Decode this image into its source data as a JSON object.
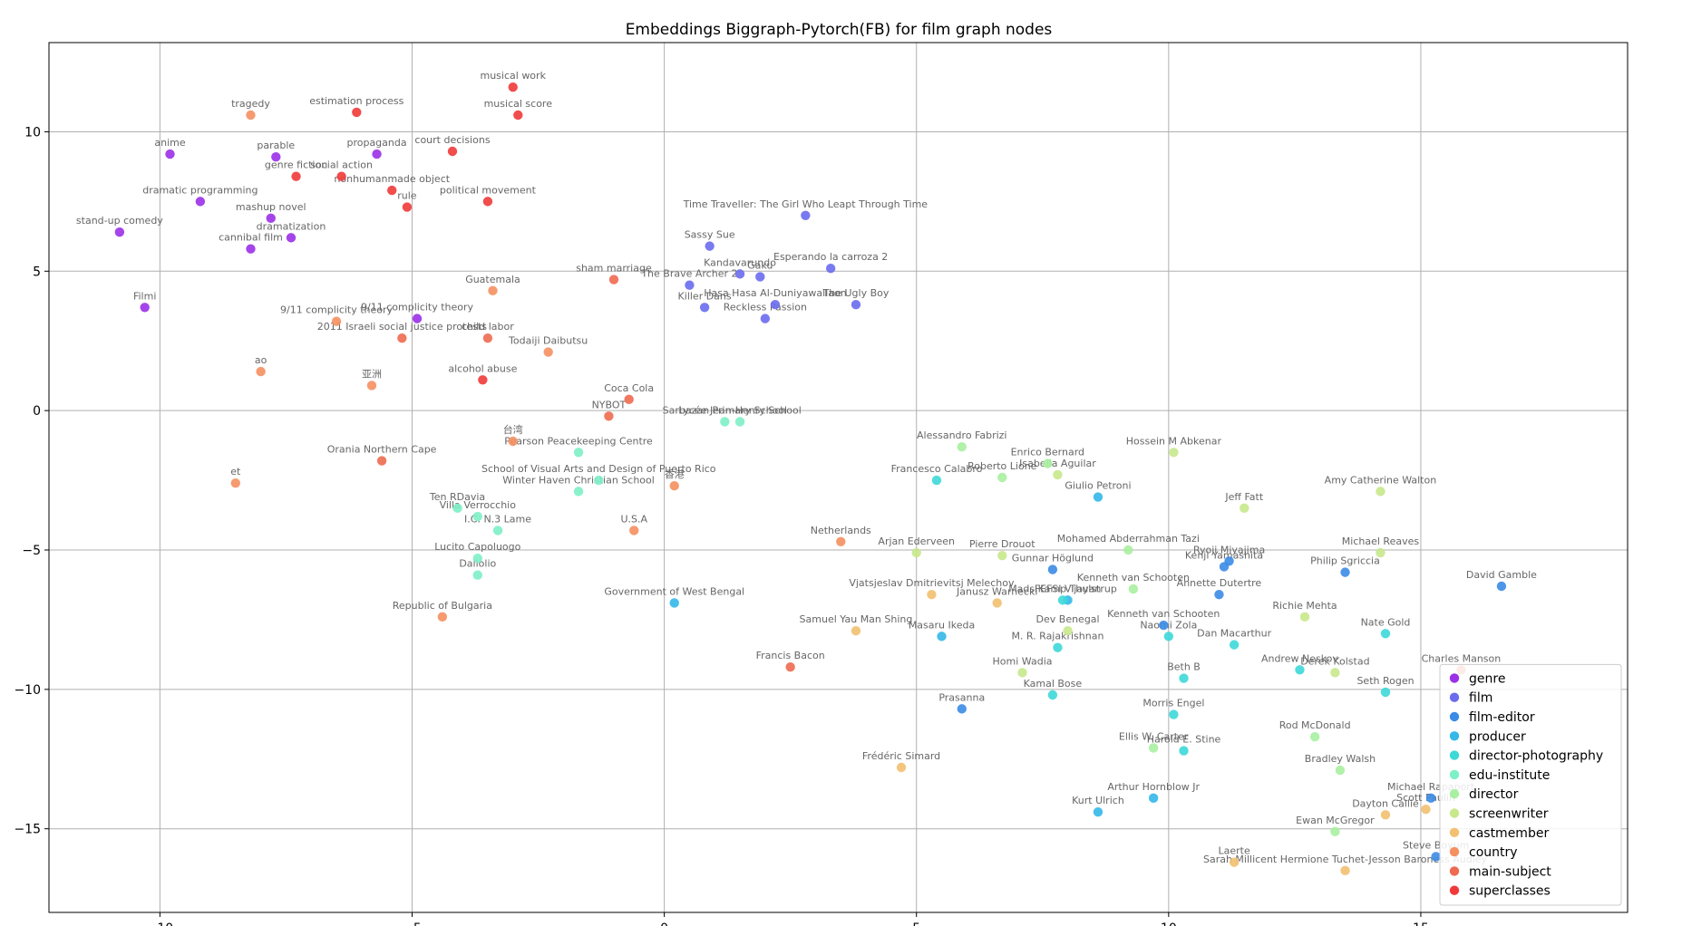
{
  "chart_data": {
    "type": "scatter",
    "title": "Embeddings Biggraph-Pytorch(FB) for film graph nodes",
    "xlabel": "",
    "ylabel": "",
    "xlim": [
      -12.2,
      19.1
    ],
    "ylim": [
      -18.0,
      13.2
    ],
    "grid": true,
    "legend_position": "lower-right",
    "x_ticks": [
      -10,
      -5,
      0,
      5,
      10,
      15
    ],
    "y_ticks": [
      10,
      5,
      0,
      -5,
      -10,
      -15
    ],
    "x_tick_labels": [
      "−10",
      "−5",
      "0",
      "5",
      "10",
      "15"
    ],
    "y_tick_labels": [
      "10",
      "5",
      "0",
      "−5",
      "−10",
      "−15"
    ],
    "series": [
      {
        "name": "genre",
        "color": "#9b30e8",
        "points": [
          {
            "label": "anime",
            "x": -9.8,
            "y": 9.2
          },
          {
            "label": "parable",
            "x": -7.7,
            "y": 9.1
          },
          {
            "label": "propaganda",
            "x": -5.7,
            "y": 9.2
          },
          {
            "label": "dramatic programming",
            "x": -9.2,
            "y": 7.5
          },
          {
            "label": "mashup novel",
            "x": -7.8,
            "y": 6.9
          },
          {
            "label": "dramatization",
            "x": -7.4,
            "y": 6.2
          },
          {
            "label": "cannibal film",
            "x": -8.2,
            "y": 5.8
          },
          {
            "label": "stand-up comedy",
            "x": -10.8,
            "y": 6.4
          },
          {
            "label": "Filmi",
            "x": -10.3,
            "y": 3.7
          },
          {
            "label": "9/11 complicity theory",
            "x": -4.9,
            "y": 3.3
          }
        ]
      },
      {
        "name": "film",
        "color": "#6b6bee",
        "points": [
          {
            "label": "Time Traveller: The Girl Who Leapt Through Time",
            "x": 2.8,
            "y": 7.0
          },
          {
            "label": "Sassy Sue",
            "x": 0.9,
            "y": 5.9
          },
          {
            "label": "Esperando la carroza 2",
            "x": 3.3,
            "y": 5.1
          },
          {
            "label": "Kandavarundo",
            "x": 1.5,
            "y": 4.9
          },
          {
            "label": "Gaku",
            "x": 1.9,
            "y": 4.8
          },
          {
            "label": "The Brave Archer 2",
            "x": 0.5,
            "y": 4.5
          },
          {
            "label": "Hasa Hasa Al-Duniyawallaon",
            "x": 2.2,
            "y": 3.8
          },
          {
            "label": "The Ugly Boy",
            "x": 3.8,
            "y": 3.8
          },
          {
            "label": "Killer Dans",
            "x": 0.8,
            "y": 3.7
          },
          {
            "label": "Reckless Passion",
            "x": 2.0,
            "y": 3.3
          }
        ]
      },
      {
        "name": "film-editor",
        "color": "#3b8be6",
        "points": [
          {
            "label": "Gunnar Höglund",
            "x": 7.7,
            "y": -5.7
          },
          {
            "label": "Ryoji Miyajima",
            "x": 11.2,
            "y": -5.4
          },
          {
            "label": "Kenji Yamashita",
            "x": 11.1,
            "y": -5.6
          },
          {
            "label": "Philip Sgriccia",
            "x": 13.5,
            "y": -5.8
          },
          {
            "label": "David Gamble",
            "x": 16.6,
            "y": -6.3
          },
          {
            "label": "Annette Dutertre",
            "x": 11.0,
            "y": -6.6
          },
          {
            "label": "Kenneth van Schooten",
            "x": 9.9,
            "y": -7.7
          },
          {
            "label": "Prasanna",
            "x": 5.9,
            "y": -10.7
          },
          {
            "label": "Michael Rapaport",
            "x": 15.2,
            "y": -13.9
          },
          {
            "label": "Steve Boyum",
            "x": 15.3,
            "y": -16.0
          }
        ]
      },
      {
        "name": "producer",
        "color": "#33b8e8",
        "points": [
          {
            "label": "Giulio Petroni",
            "x": 8.6,
            "y": -3.1
          },
          {
            "label": "FEFSI Vijayan",
            "x": 8.0,
            "y": -6.8
          },
          {
            "label": "Government of West Bengal",
            "x": 0.2,
            "y": -6.9
          },
          {
            "label": "Masaru Ikeda",
            "x": 5.5,
            "y": -8.1
          },
          {
            "label": "Arthur Hornblow Jr",
            "x": 9.7,
            "y": -13.9
          },
          {
            "label": "Kurt Ulrich",
            "x": 8.6,
            "y": -14.4
          }
        ]
      },
      {
        "name": "director-photography",
        "color": "#3dd8d8",
        "points": [
          {
            "label": "Francesco Calabro",
            "x": 5.4,
            "y": -2.5
          },
          {
            "label": "Mads Kamp Thulstrup",
            "x": 7.9,
            "y": -6.8
          },
          {
            "label": "M. R. Rajakrishnan",
            "x": 7.8,
            "y": -8.5
          },
          {
            "label": "Naomi Zola",
            "x": 10.0,
            "y": -8.1
          },
          {
            "label": "Dan Macarthur",
            "x": 11.3,
            "y": -8.4
          },
          {
            "label": "Andrew Neskov",
            "x": 12.6,
            "y": -9.3
          },
          {
            "label": "Nate Gold",
            "x": 14.3,
            "y": -8.0
          },
          {
            "label": "Beth B",
            "x": 10.3,
            "y": -9.6
          },
          {
            "label": "Kamal Bose",
            "x": 7.7,
            "y": -10.2
          },
          {
            "label": "Seth Rogen",
            "x": 14.3,
            "y": -10.1
          },
          {
            "label": "Morris Engel",
            "x": 10.1,
            "y": -10.9
          },
          {
            "label": "Harold E. Stine",
            "x": 10.3,
            "y": -12.2
          }
        ]
      },
      {
        "name": "edu-institute",
        "color": "#7df0c6",
        "points": [
          {
            "label": "Sarbazan Primary School",
            "x": 1.2,
            "y": -0.4
          },
          {
            "label": "Lycée Jean-Henry School",
            "x": 1.5,
            "y": -0.4
          },
          {
            "label": "Pearson Peacekeeping Centre",
            "x": -1.7,
            "y": -1.5
          },
          {
            "label": "School of Visual Arts and Design of Puerto Rico",
            "x": -1.3,
            "y": -2.5
          },
          {
            "label": "Winter Haven Christian School",
            "x": -1.7,
            "y": -2.9
          },
          {
            "label": "Ten RDavia",
            "x": -4.1,
            "y": -3.5
          },
          {
            "label": "Villa Verrocchio",
            "x": -3.7,
            "y": -3.8
          },
          {
            "label": "I.C. N.3 Lame",
            "x": -3.3,
            "y": -4.3
          },
          {
            "label": "Lucito Capoluogo",
            "x": -3.7,
            "y": -5.3
          },
          {
            "label": "Dallolio",
            "x": -3.7,
            "y": -5.9
          }
        ]
      },
      {
        "name": "director",
        "color": "#a8f0a0",
        "points": [
          {
            "label": "Alessandro Fabrizi",
            "x": 5.9,
            "y": -1.3
          },
          {
            "label": "Enrico Bernard",
            "x": 7.6,
            "y": -1.9
          },
          {
            "label": "Roberto Lione",
            "x": 6.7,
            "y": -2.4
          },
          {
            "label": "Mohamed Abderrahman Tazi",
            "x": 9.2,
            "y": -5.0
          },
          {
            "label": "Kenneth van Schooten",
            "x": 9.3,
            "y": -6.4
          },
          {
            "label": "Ellis W. Carter",
            "x": 9.7,
            "y": -12.1
          },
          {
            "label": "Rod McDonald",
            "x": 12.9,
            "y": -11.7
          },
          {
            "label": "Ewan McGregor",
            "x": 13.3,
            "y": -15.1
          },
          {
            "label": "Bradley Walsh",
            "x": 13.4,
            "y": -12.9
          }
        ]
      },
      {
        "name": "screenwriter",
        "color": "#c8e88c",
        "points": [
          {
            "label": "Hossein M Abkenar",
            "x": 10.1,
            "y": -1.5
          },
          {
            "label": "Isabella Aguilar",
            "x": 7.8,
            "y": -2.3
          },
          {
            "label": "Jeff Fatt",
            "x": 11.5,
            "y": -3.5
          },
          {
            "label": "Amy Catherine Walton",
            "x": 14.2,
            "y": -2.9
          },
          {
            "label": "Arjan Ederveen",
            "x": 5.0,
            "y": -5.1
          },
          {
            "label": "Pierre Drouot",
            "x": 6.7,
            "y": -5.2
          },
          {
            "label": "Michael Reaves",
            "x": 14.2,
            "y": -5.1
          },
          {
            "label": "Dev Benegal",
            "x": 8.0,
            "y": -7.9
          },
          {
            "label": "Richie Mehta",
            "x": 12.7,
            "y": -7.4
          },
          {
            "label": "Homi Wadia",
            "x": 7.1,
            "y": -9.4
          },
          {
            "label": "Derek Kolstad",
            "x": 13.3,
            "y": -9.4
          }
        ]
      },
      {
        "name": "castmember",
        "color": "#f2c070",
        "points": [
          {
            "label": "Janusz Warnecki",
            "x": 6.6,
            "y": -6.9
          },
          {
            "label": "Vjatsjeslav Dmitrievitsj Melechov",
            "x": 5.3,
            "y": -6.6
          },
          {
            "label": "Samuel Yau Man Shing",
            "x": 3.8,
            "y": -7.9
          },
          {
            "label": "Frédéric Simard",
            "x": 4.7,
            "y": -12.8
          },
          {
            "label": "Dayton Callie",
            "x": 14.3,
            "y": -14.5
          },
          {
            "label": "Scott Paulin",
            "x": 15.1,
            "y": -14.3
          },
          {
            "label": "Laerte",
            "x": 11.3,
            "y": -16.2
          },
          {
            "label": "Sarah Millicent Hermione Tuchet-Jesson Baroness Audley",
            "x": 13.5,
            "y": -16.5
          }
        ]
      },
      {
        "name": "country",
        "color": "#f59060",
        "points": [
          {
            "label": "Guatemala",
            "x": -3.4,
            "y": 4.3
          },
          {
            "label": "ao",
            "x": -8.0,
            "y": 1.4
          },
          {
            "label": "亚洲",
            "x": -5.8,
            "y": 0.9
          },
          {
            "label": "Todaiji Daibutsu",
            "x": -2.3,
            "y": 2.1
          },
          {
            "label": "台湾",
            "x": -3.0,
            "y": -1.1
          },
          {
            "label": "香港",
            "x": 0.2,
            "y": -2.7
          },
          {
            "label": "et",
            "x": -8.5,
            "y": -2.6
          },
          {
            "label": "U.S.A",
            "x": -0.6,
            "y": -4.3
          },
          {
            "label": "Netherlands",
            "x": 3.5,
            "y": -4.7
          },
          {
            "label": "Republic of Bulgaria",
            "x": -4.4,
            "y": -7.4
          },
          {
            "label": "tragedy",
            "x": -8.2,
            "y": 10.6
          },
          {
            "label": "9/11 complicity theory",
            "x": -6.5,
            "y": 3.2
          }
        ]
      },
      {
        "name": "main-subject",
        "color": "#ee6a50",
        "points": [
          {
            "label": "2011 Israeli social justice protests",
            "x": -5.2,
            "y": 2.6
          },
          {
            "label": "child labor",
            "x": -3.5,
            "y": 2.6
          },
          {
            "label": "Orania Northern Cape",
            "x": -5.6,
            "y": -1.8
          },
          {
            "label": "Coca Cola",
            "x": -0.7,
            "y": 0.4
          },
          {
            "label": "sham marriage",
            "x": -1.0,
            "y": 4.7
          },
          {
            "label": "Francis Bacon",
            "x": 2.5,
            "y": -9.2
          },
          {
            "label": "Charles Manson",
            "x": 15.8,
            "y": -9.3
          },
          {
            "label": "NYBOT",
            "x": -1.1,
            "y": -0.2
          }
        ]
      },
      {
        "name": "superclasses",
        "color": "#f03a3a",
        "points": [
          {
            "label": "musical work",
            "x": -3.0,
            "y": 11.6
          },
          {
            "label": "musical score",
            "x": -2.9,
            "y": 10.6
          },
          {
            "label": "estimation process",
            "x": -6.1,
            "y": 10.7
          },
          {
            "label": "court decisions",
            "x": -4.2,
            "y": 9.3
          },
          {
            "label": "genre fiction",
            "x": -7.3,
            "y": 8.4
          },
          {
            "label": "social action",
            "x": -6.4,
            "y": 8.4
          },
          {
            "label": "nonhumanmade object",
            "x": -5.4,
            "y": 7.9
          },
          {
            "label": "rule",
            "x": -5.1,
            "y": 7.3
          },
          {
            "label": "political movement",
            "x": -3.5,
            "y": 7.5
          },
          {
            "label": "alcohol abuse",
            "x": -3.6,
            "y": 1.1
          }
        ]
      }
    ]
  }
}
